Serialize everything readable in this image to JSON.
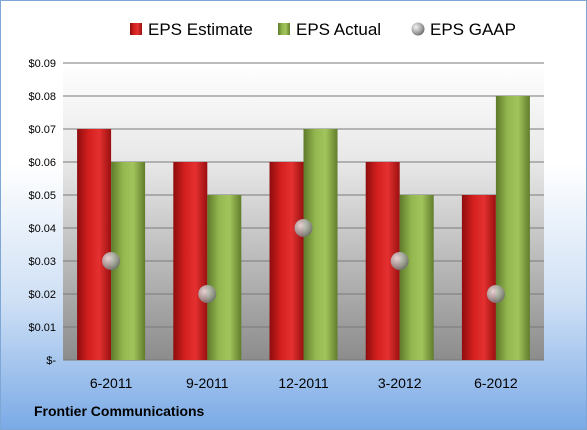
{
  "company": "Frontier Communications",
  "colors": {
    "estimate": "#d21e1e",
    "actual": "#8db04a",
    "gaap": "#b8bcc4",
    "axis_text": "#000000"
  },
  "chart_data": {
    "type": "bar",
    "categories": [
      "6-2011",
      "9-2011",
      "12-2011",
      "3-2012",
      "6-2012"
    ],
    "series": [
      {
        "name": "EPS Estimate",
        "type": "bar",
        "values": [
          0.07,
          0.06,
          0.06,
          0.06,
          0.05
        ]
      },
      {
        "name": "EPS Actual",
        "type": "bar",
        "values": [
          0.06,
          0.05,
          0.07,
          0.05,
          0.08
        ]
      },
      {
        "name": "EPS GAAP",
        "type": "scatter",
        "values": [
          0.03,
          0.02,
          0.04,
          0.03,
          0.02
        ]
      }
    ],
    "y_ticks": [
      "$-",
      "$0.01",
      "$0.02",
      "$0.03",
      "$0.04",
      "$0.05",
      "$0.06",
      "$0.07",
      "$0.08",
      "$0.09"
    ],
    "ylim": [
      0,
      0.09
    ],
    "grid": true,
    "legend_position": "top",
    "title": "",
    "xlabel": "",
    "ylabel": ""
  }
}
